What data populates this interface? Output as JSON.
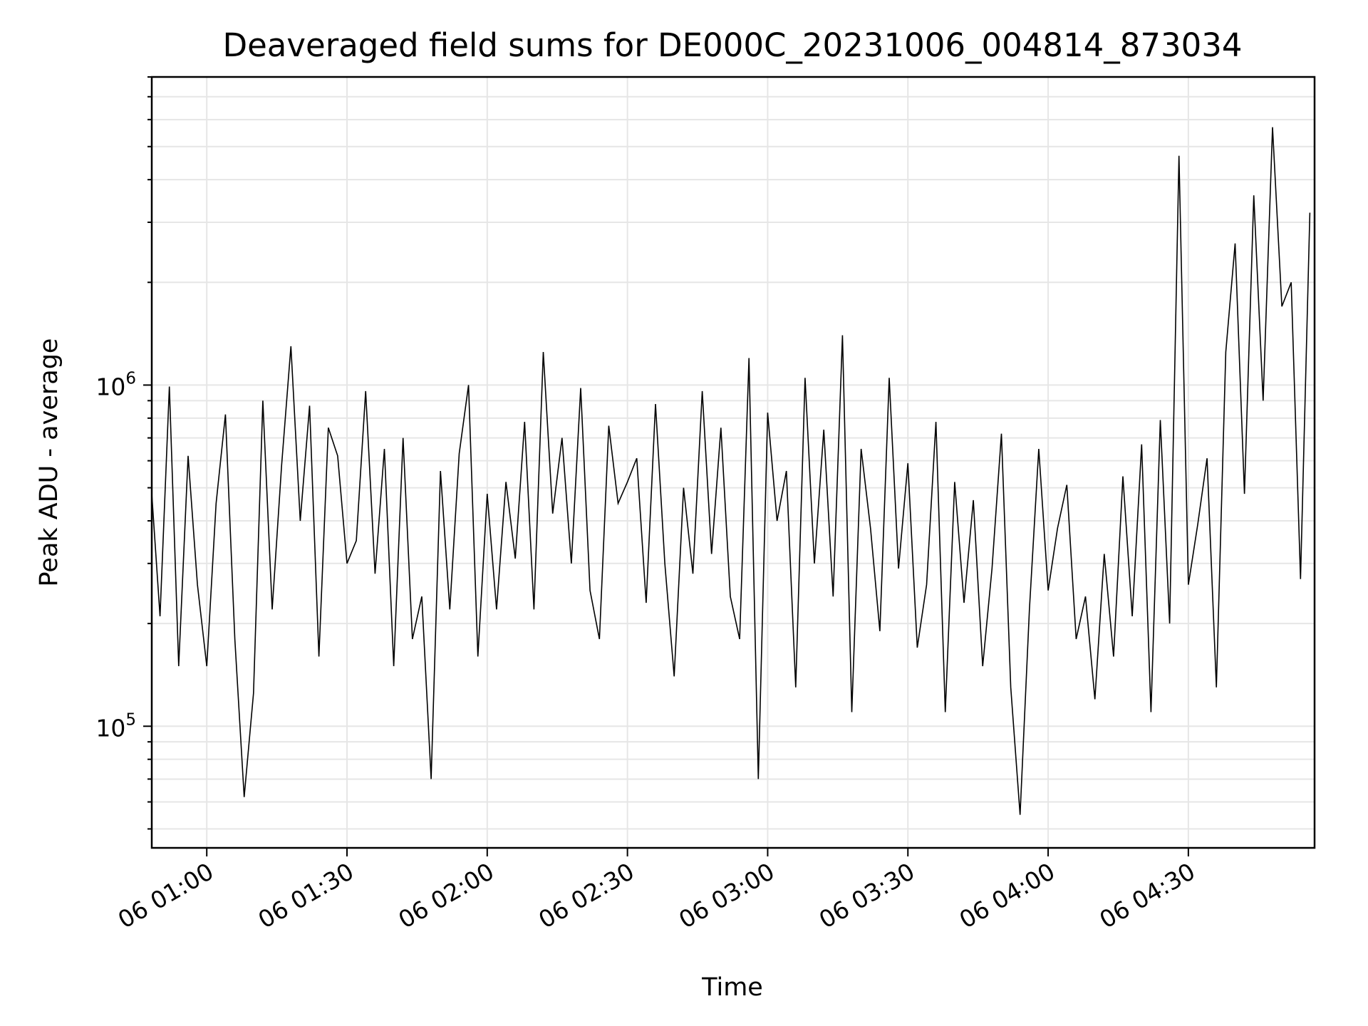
{
  "chart_data": {
    "type": "line",
    "title": "Deaveraged field sums for DE000C_20231006_004814_873034",
    "xlabel": "Time",
    "ylabel": "Peak ADU - average",
    "yscale": "log",
    "grid": true,
    "xlim": [
      "2023-10-06 00:48:14",
      "2023-10-06 04:57:00"
    ],
    "ylim": [
      44000,
      8000000
    ],
    "x_ticks": [
      "06 01:00",
      "06 01:30",
      "06 02:00",
      "06 02:30",
      "06 03:00",
      "06 03:30",
      "06 04:00",
      "06 04:30"
    ],
    "x_tick_times": [
      "2023-10-06 01:00",
      "2023-10-06 01:30",
      "2023-10-06 02:00",
      "2023-10-06 02:30",
      "2023-10-06 03:00",
      "2023-10-06 03:30",
      "2023-10-06 04:00",
      "2023-10-06 04:30"
    ],
    "y_ticks": [
      {
        "base": "10",
        "exp": "5",
        "value": 100000
      },
      {
        "base": "10",
        "exp": "6",
        "value": 1000000
      }
    ],
    "series": [
      {
        "color": "#000000",
        "x": [
          "2023-10-06 00:48:14",
          "2023-10-06 00:50:00",
          "2023-10-06 00:52:00",
          "2023-10-06 00:54:00",
          "2023-10-06 00:56:00",
          "2023-10-06 00:58:00",
          "2023-10-06 01:00:00",
          "2023-10-06 01:02:00",
          "2023-10-06 01:04:00",
          "2023-10-06 01:06:00",
          "2023-10-06 01:08:00",
          "2023-10-06 01:10:00",
          "2023-10-06 01:12:00",
          "2023-10-06 01:14:00",
          "2023-10-06 01:16:00",
          "2023-10-06 01:18:00",
          "2023-10-06 01:20:00",
          "2023-10-06 01:22:00",
          "2023-10-06 01:24:00",
          "2023-10-06 01:26:00",
          "2023-10-06 01:28:00",
          "2023-10-06 01:30:00",
          "2023-10-06 01:32:00",
          "2023-10-06 01:34:00",
          "2023-10-06 01:36:00",
          "2023-10-06 01:38:00",
          "2023-10-06 01:40:00",
          "2023-10-06 01:42:00",
          "2023-10-06 01:44:00",
          "2023-10-06 01:46:00",
          "2023-10-06 01:48:00",
          "2023-10-06 01:50:00",
          "2023-10-06 01:52:00",
          "2023-10-06 01:54:00",
          "2023-10-06 01:56:00",
          "2023-10-06 01:58:00",
          "2023-10-06 02:00:00",
          "2023-10-06 02:02:00",
          "2023-10-06 02:04:00",
          "2023-10-06 02:06:00",
          "2023-10-06 02:08:00",
          "2023-10-06 02:10:00",
          "2023-10-06 02:12:00",
          "2023-10-06 02:14:00",
          "2023-10-06 02:16:00",
          "2023-10-06 02:18:00",
          "2023-10-06 02:20:00",
          "2023-10-06 02:22:00",
          "2023-10-06 02:24:00",
          "2023-10-06 02:26:00",
          "2023-10-06 02:28:00",
          "2023-10-06 02:30:00",
          "2023-10-06 02:32:00",
          "2023-10-06 02:34:00",
          "2023-10-06 02:36:00",
          "2023-10-06 02:38:00",
          "2023-10-06 02:40:00",
          "2023-10-06 02:42:00",
          "2023-10-06 02:44:00",
          "2023-10-06 02:46:00",
          "2023-10-06 02:48:00",
          "2023-10-06 02:50:00",
          "2023-10-06 02:52:00",
          "2023-10-06 02:54:00",
          "2023-10-06 02:56:00",
          "2023-10-06 02:58:00",
          "2023-10-06 03:00:00",
          "2023-10-06 03:02:00",
          "2023-10-06 03:04:00",
          "2023-10-06 03:06:00",
          "2023-10-06 03:08:00",
          "2023-10-06 03:10:00",
          "2023-10-06 03:12:00",
          "2023-10-06 03:14:00",
          "2023-10-06 03:16:00",
          "2023-10-06 03:18:00",
          "2023-10-06 03:20:00",
          "2023-10-06 03:22:00",
          "2023-10-06 03:24:00",
          "2023-10-06 03:26:00",
          "2023-10-06 03:28:00",
          "2023-10-06 03:30:00",
          "2023-10-06 03:32:00",
          "2023-10-06 03:34:00",
          "2023-10-06 03:36:00",
          "2023-10-06 03:38:00",
          "2023-10-06 03:40:00",
          "2023-10-06 03:42:00",
          "2023-10-06 03:44:00",
          "2023-10-06 03:46:00",
          "2023-10-06 03:48:00",
          "2023-10-06 03:50:00",
          "2023-10-06 03:52:00",
          "2023-10-06 03:54:00",
          "2023-10-06 03:56:00",
          "2023-10-06 03:58:00",
          "2023-10-06 04:00:00",
          "2023-10-06 04:02:00",
          "2023-10-06 04:04:00",
          "2023-10-06 04:06:00",
          "2023-10-06 04:08:00",
          "2023-10-06 04:10:00",
          "2023-10-06 04:12:00",
          "2023-10-06 04:14:00",
          "2023-10-06 04:16:00",
          "2023-10-06 04:18:00",
          "2023-10-06 04:20:00",
          "2023-10-06 04:22:00",
          "2023-10-06 04:24:00",
          "2023-10-06 04:26:00",
          "2023-10-06 04:28:00",
          "2023-10-06 04:30:00",
          "2023-10-06 04:32:00",
          "2023-10-06 04:34:00",
          "2023-10-06 04:36:00",
          "2023-10-06 04:38:00",
          "2023-10-06 04:40:00",
          "2023-10-06 04:42:00",
          "2023-10-06 04:44:00",
          "2023-10-06 04:46:00",
          "2023-10-06 04:48:00",
          "2023-10-06 04:50:00",
          "2023-10-06 04:52:00",
          "2023-10-06 04:54:00",
          "2023-10-06 04:56:00"
        ],
        "y": [
          480000,
          210000,
          990000,
          150000,
          620000,
          260000,
          150000,
          450000,
          820000,
          180000,
          62000,
          125000,
          900000,
          220000,
          580000,
          1300000,
          400000,
          870000,
          160000,
          750000,
          620000,
          300000,
          350000,
          960000,
          280000,
          650000,
          150000,
          700000,
          180000,
          240000,
          70000,
          560000,
          220000,
          630000,
          1000000,
          160000,
          480000,
          220000,
          520000,
          310000,
          780000,
          220000,
          1250000,
          420000,
          700000,
          300000,
          980000,
          250000,
          180000,
          760000,
          450000,
          520000,
          610000,
          230000,
          880000,
          300000,
          140000,
          500000,
          280000,
          960000,
          320000,
          750000,
          240000,
          180000,
          1200000,
          70000,
          830000,
          400000,
          560000,
          130000,
          1050000,
          300000,
          740000,
          240000,
          1400000,
          110000,
          650000,
          380000,
          190000,
          1050000,
          290000,
          590000,
          170000,
          260000,
          780000,
          110000,
          520000,
          230000,
          460000,
          150000,
          290000,
          720000,
          130000,
          55000,
          220000,
          650000,
          250000,
          380000,
          510000,
          180000,
          240000,
          120000,
          320000,
          160000,
          540000,
          210000,
          670000,
          110000,
          790000,
          200000,
          4700000,
          260000,
          390000,
          610000,
          130000,
          1250000,
          2600000,
          480000,
          3600000,
          900000,
          5700000,
          1700000,
          2000000,
          270000,
          3200000
        ]
      }
    ]
  }
}
